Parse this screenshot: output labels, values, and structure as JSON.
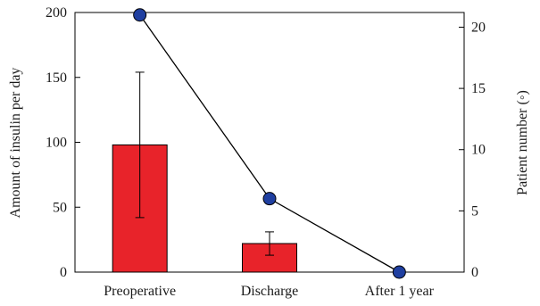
{
  "chart_data": {
    "type": "bar",
    "categories": [
      "Preoperative",
      "Discharge",
      "After 1 year"
    ],
    "ylabel_left": "Amount of insulin per day",
    "ylabel_right": "Patient number (◦)",
    "left_axis": {
      "ylim": [
        0,
        200
      ],
      "ticks": [
        "0",
        "50",
        "100",
        "150",
        "200"
      ]
    },
    "right_axis": {
      "ylim": [
        0,
        21.2
      ],
      "ticks": [
        "0",
        "5",
        "10",
        "15",
        "20"
      ]
    },
    "series": [
      {
        "kind": "bar",
        "axis": "left",
        "values": [
          98,
          22,
          0
        ],
        "error_low": [
          42,
          13,
          null
        ],
        "error_high": [
          154,
          31,
          null
        ],
        "color": "#e8232a"
      },
      {
        "kind": "line",
        "axis": "right",
        "values": [
          21,
          6,
          0
        ],
        "marker_color": "#1f3fa0",
        "line_color": "#000000"
      }
    ],
    "grid": false,
    "legend": "none"
  }
}
